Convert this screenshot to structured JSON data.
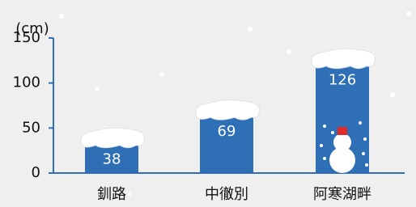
{
  "chart_data": {
    "type": "bar",
    "y_axis_label": "(cm)",
    "categories": [
      "釧路",
      "中徹別",
      "阿寒湖畔"
    ],
    "values": [
      38,
      69,
      126
    ],
    "color": "#2f6fb6",
    "ylim": [
      0,
      150
    ],
    "yticks": [
      0,
      50,
      100,
      150
    ]
  }
}
